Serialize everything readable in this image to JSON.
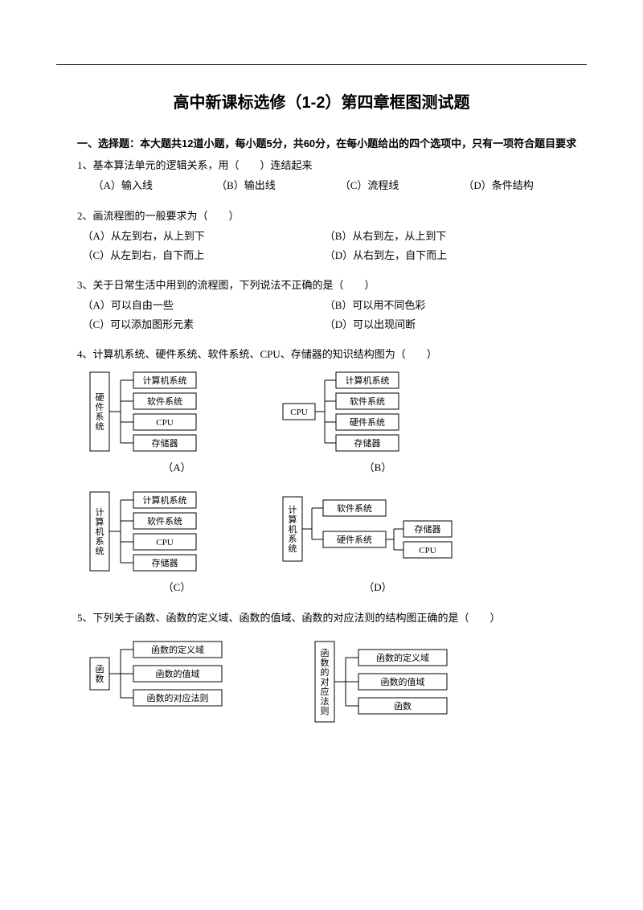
{
  "title": "高中新课标选修（1-2）第四章框图测试题",
  "section1": "一、选择题：本大题共12道小题，每小题5分，共60分，在每小题给出的四个选项中，只有一项符合题目要求",
  "q1": {
    "text": "1、基本算法单元的逻辑关系，用（　　）连结起来",
    "a": "（A）输入线",
    "b": "（B）输出线",
    "c": "（C）流程线",
    "d": "（D）条件结构"
  },
  "q2": {
    "text": "2、画流程图的一般要求为（　　）",
    "a": "（A）从左到右，从上到下",
    "b": "（B）从右到左，从上到下",
    "c": "（C）从左到右，自下而上",
    "d": "（D）从右到左，自下而上"
  },
  "q3": {
    "text": "3、关于日常生活中用到的流程图，下列说法不正确的是（　　）",
    "a": "（A）可以自由一些",
    "b": "（B）可以用不同色彩",
    "c": "（C）可以添加图形元素",
    "d": "（D）可以出现间断"
  },
  "q4": {
    "text": "4、计算机系统、硬件系统、软件系统、CPU、存储器的知识结构图为（　　）",
    "A": {
      "root": "硬件系统",
      "items": [
        "计算机系统",
        "软件系统",
        "CPU",
        "存储器"
      ],
      "label": "（A）"
    },
    "B": {
      "root": "CPU",
      "items": [
        "计算机系统",
        "软件系统",
        "硬件系统",
        "存储器"
      ],
      "label": "（B）"
    },
    "C": {
      "root": "计算机系统",
      "items": [
        "计算机系统",
        "软件系统",
        "CPU",
        "存储器"
      ],
      "label": "（C）"
    },
    "D": {
      "root": "计算机系统",
      "items": [
        "软件系统",
        "硬件系统"
      ],
      "sub": [
        "存储器",
        "CPU"
      ],
      "label": "（D）"
    }
  },
  "q5": {
    "text": "5、下列关于函数、函数的定义域、函数的值域、函数的对应法则的结构图正确的是（　　）",
    "A": {
      "root": "函数",
      "items": [
        "函数的定义域",
        "函数的值域",
        "函数的对应法则"
      ]
    },
    "B": {
      "root": "函数的对应法则",
      "items": [
        "函数的定义域",
        "函数的值域",
        "函数"
      ]
    }
  },
  "style": {
    "box_stroke": "#000000",
    "box_fill": "#ffffff",
    "line_stroke": "#000000",
    "font_size_box": 11,
    "font_size_body": 13,
    "vertical_root_box_w": 22,
    "item_box_w": 78,
    "item_box_h": 20,
    "item_gap": 6
  }
}
